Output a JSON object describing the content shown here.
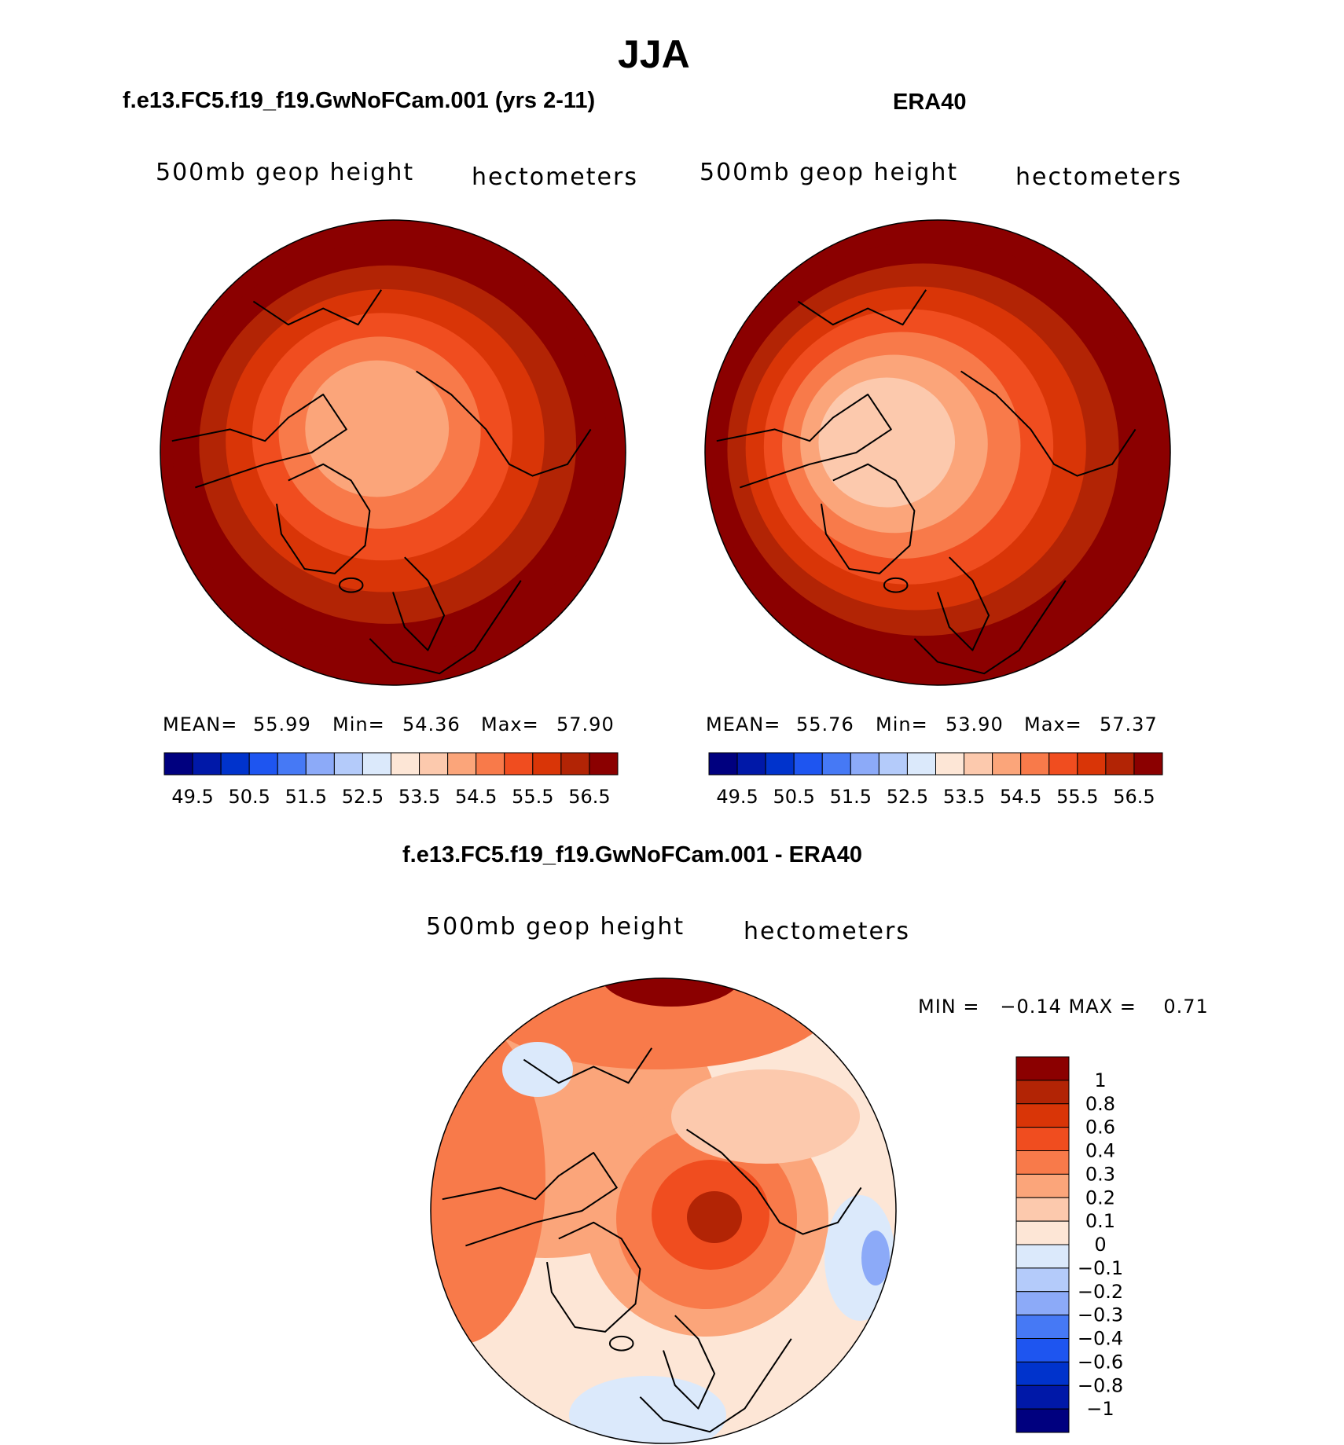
{
  "page_title": "JJA",
  "panels": [
    {
      "title": "f.e13.FC5.f19_f19.GwNoFCam.001 (yrs 2-11)",
      "left_label": "500mb geop height",
      "right_label": "hectometers",
      "stats": {
        "mean_label": "MEAN=",
        "mean": "55.99",
        "min_label": "Min=",
        "min": "54.36",
        "max_label": "Max=",
        "max": "57.90"
      }
    },
    {
      "title": "ERA40",
      "left_label": "500mb geop height",
      "right_label": "hectometers",
      "stats": {
        "mean_label": "MEAN=",
        "mean": "55.76",
        "min_label": "Min=",
        "min": "53.90",
        "max_label": "Max=",
        "max": "57.37"
      }
    }
  ],
  "diff_panel": {
    "title": "f.e13.FC5.f19_f19.GwNoFCam.001 - ERA40",
    "left_label": "500mb geop height",
    "right_label": "hectometers",
    "minmax": "MIN =   −0.14 MAX =    0.71"
  },
  "chart_data": [
    {
      "type": "heatmap",
      "title": "f.e13.FC5.f19_f19.GwNoFCam.001 (yrs 2-11)",
      "variable": "500mb geop height",
      "units": "hectometers",
      "mean": 55.99,
      "min": 54.36,
      "max": 57.9,
      "colorbar_ticks": [
        "49.5",
        "50.5",
        "51.5",
        "52.5",
        "53.5",
        "54.5",
        "55.5",
        "56.5"
      ],
      "colorbar_levels": [
        49.5,
        50,
        50.5,
        51,
        51.5,
        52,
        52.5,
        53,
        53.5,
        54,
        54.5,
        55,
        55.5,
        56,
        56.5
      ],
      "field_rings": [
        57.5,
        56.75,
        56.25,
        55.75,
        55.25,
        54.75,
        54.25
      ]
    },
    {
      "type": "heatmap",
      "title": "ERA40",
      "variable": "500mb geop height",
      "units": "hectometers",
      "mean": 55.76,
      "min": 53.9,
      "max": 57.37,
      "colorbar_ticks": [
        "49.5",
        "50.5",
        "51.5",
        "52.5",
        "53.5",
        "54.5",
        "55.5",
        "56.5"
      ],
      "colorbar_levels": [
        49.5,
        50,
        50.5,
        51,
        51.5,
        52,
        52.5,
        53,
        53.5,
        54,
        54.5,
        55,
        55.5,
        56,
        56.5
      ],
      "field_rings": [
        57.0,
        56.75,
        56.25,
        55.75,
        55.25,
        54.75,
        54.25,
        53.75
      ]
    },
    {
      "type": "heatmap",
      "title": "f.e13.FC5.f19_f19.GwNoFCam.001 - ERA40",
      "variable": "500mb geop height",
      "units": "hectometers",
      "min": -0.14,
      "max": 0.71,
      "colorbar_ticks": [
        "1",
        "0.8",
        "0.6",
        "0.4",
        "0.3",
        "0.2",
        "0.1",
        "0",
        "−0.1",
        "−0.2",
        "−0.3",
        "−0.4",
        "−0.6",
        "−0.8",
        "−1"
      ],
      "colorbar_levels": [
        1,
        0.8,
        0.6,
        0.4,
        0.3,
        0.2,
        0.1,
        0,
        -0.1,
        -0.2,
        -0.3,
        -0.4,
        -0.6,
        -0.8,
        -1
      ]
    }
  ],
  "colors": {
    "abs_scale": [
      "#00007f",
      "#0018a8",
      "#0033cc",
      "#1e55f0",
      "#4679f5",
      "#8caaf8",
      "#b4cbfa",
      "#dbe9fb",
      "#fde6d6",
      "#fcc9ad",
      "#fba57a",
      "#f87a4a",
      "#f04d1f",
      "#d93507",
      "#b22405",
      "#8b0000"
    ],
    "diff_scale": [
      "#8b0000",
      "#b22405",
      "#d93507",
      "#f04d1f",
      "#f87a4a",
      "#fba57a",
      "#fcc9ad",
      "#fde6d6",
      "#dbe9fb",
      "#b4cbfa",
      "#8caaf8",
      "#4679f5",
      "#1e55f0",
      "#0033cc",
      "#0018a8",
      "#00007f"
    ]
  }
}
